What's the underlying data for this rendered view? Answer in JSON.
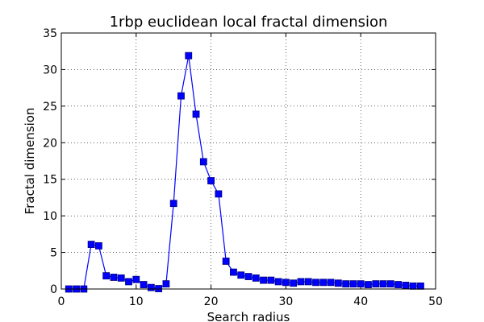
{
  "chart_data": {
    "type": "line",
    "title": "1rbp euclidean local fractal dimension",
    "xlabel": "Search radius",
    "ylabel": "Fractal dimension",
    "xlim": [
      0,
      50
    ],
    "ylim": [
      0,
      35
    ],
    "xticks": [
      0,
      10,
      20,
      30,
      40,
      50
    ],
    "yticks": [
      0,
      5,
      10,
      15,
      20,
      25,
      30,
      35
    ],
    "xtick_labels": [
      "0",
      "10",
      "20",
      "30",
      "40",
      "50"
    ],
    "ytick_labels": [
      "0",
      "5",
      "10",
      "15",
      "20",
      "25",
      "30",
      "35"
    ],
    "grid": true,
    "series": [
      {
        "color": "#0000ff",
        "marker": "square",
        "x": [
          1,
          2,
          3,
          4,
          5,
          6,
          7,
          8,
          9,
          10,
          11,
          12,
          13,
          14,
          15,
          16,
          17,
          18,
          19,
          20,
          21,
          22,
          23,
          24,
          25,
          26,
          27,
          28,
          29,
          30,
          31,
          32,
          33,
          34,
          35,
          36,
          37,
          38,
          39,
          40,
          41,
          42,
          43,
          44,
          45,
          46,
          47,
          48
        ],
        "y": [
          0,
          0,
          0,
          6.1,
          5.9,
          1.8,
          1.6,
          1.5,
          1.0,
          1.3,
          0.6,
          0.2,
          0.05,
          0.7,
          11.7,
          26.4,
          31.9,
          23.9,
          17.4,
          14.8,
          13.0,
          3.8,
          2.3,
          1.9,
          1.7,
          1.5,
          1.2,
          1.2,
          1.0,
          0.9,
          0.8,
          1.0,
          1.0,
          0.9,
          0.9,
          0.9,
          0.8,
          0.7,
          0.7,
          0.7,
          0.6,
          0.7,
          0.7,
          0.7,
          0.6,
          0.5,
          0.4,
          0.4
        ]
      }
    ]
  }
}
